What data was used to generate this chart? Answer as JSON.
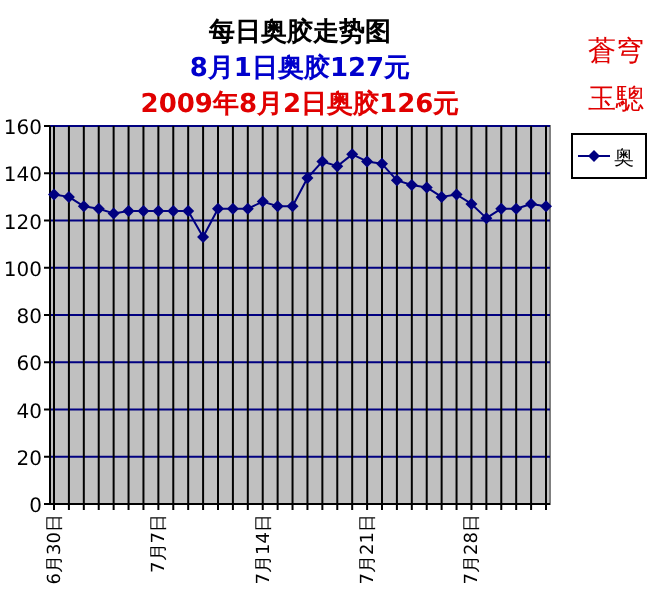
{
  "chart_data": {
    "type": "line",
    "title": "每日奥胶走势图",
    "subtitle": "8月1日奥胶127元",
    "annotations": [
      "2009年8月2日奥胶126元",
      "蒼穹",
      "玉驄"
    ],
    "x": [
      "--06-30",
      "--07-01",
      "--07-02",
      "--07-03",
      "--07-04",
      "--07-05",
      "--07-06",
      "--07-07",
      "--07-08",
      "--07-09",
      "--07-10",
      "--07-11",
      "--07-12",
      "--07-13",
      "--07-14",
      "--07-15",
      "--07-16",
      "--07-17",
      "--07-18",
      "--07-19",
      "--07-20",
      "--07-21",
      "--07-22",
      "--07-23",
      "--07-24",
      "--07-25",
      "--07-26",
      "--07-27",
      "--07-28",
      "--07-29",
      "--07-30",
      "--07-31",
      "--08-01",
      "--08-02"
    ],
    "series": [
      {
        "name": "奥",
        "color": "#000080",
        "values": [
          131,
          130,
          126,
          125,
          123,
          124,
          124,
          124,
          124,
          124,
          113,
          125,
          125,
          125,
          128,
          126,
          126,
          138,
          145,
          143,
          148,
          145,
          144,
          137,
          135,
          134,
          130,
          131,
          127,
          121,
          125,
          125,
          127,
          126
        ]
      }
    ],
    "xlim": [
      "--06-30",
      "--08-02"
    ],
    "xticks": [
      {
        "value": "--06-30",
        "label": "6月30日"
      },
      {
        "value": "--07-01",
        "label": null
      },
      {
        "value": "--07-02",
        "label": null
      },
      {
        "value": "--07-03",
        "label": null
      },
      {
        "value": "--07-04",
        "label": null
      },
      {
        "value": "--07-05",
        "label": null
      },
      {
        "value": "--07-06",
        "label": null
      },
      {
        "value": "--07-07",
        "label": "7月7日"
      },
      {
        "value": "--07-08",
        "label": null
      },
      {
        "value": "--07-09",
        "label": null
      },
      {
        "value": "--07-10",
        "label": null
      },
      {
        "value": "--07-11",
        "label": null
      },
      {
        "value": "--07-12",
        "label": null
      },
      {
        "value": "--07-13",
        "label": null
      },
      {
        "value": "--07-14",
        "label": "7月14日"
      },
      {
        "value": "--07-15",
        "label": null
      },
      {
        "value": "--07-16",
        "label": null
      },
      {
        "value": "--07-17",
        "label": null
      },
      {
        "value": "--07-18",
        "label": null
      },
      {
        "value": "--07-19",
        "label": null
      },
      {
        "value": "--07-20",
        "label": null
      },
      {
        "value": "--07-21",
        "label": "7月21日"
      },
      {
        "value": "--07-22",
        "label": null
      },
      {
        "value": "--07-23",
        "label": null
      },
      {
        "value": "--07-24",
        "label": null
      },
      {
        "value": "--07-25",
        "label": null
      },
      {
        "value": "--07-26",
        "label": null
      },
      {
        "value": "--07-27",
        "label": null
      },
      {
        "value": "--07-28",
        "label": "7月28日"
      },
      {
        "value": "--07-29",
        "label": null
      },
      {
        "value": "--07-30",
        "label": null
      },
      {
        "value": "--07-31",
        "label": null
      },
      {
        "value": "--08-01",
        "label": null
      },
      {
        "value": "--08-02",
        "label": null
      }
    ],
    "ylim": [
      0,
      160
    ],
    "yticks": [
      0,
      20,
      40,
      60,
      80,
      100,
      120,
      140,
      160
    ],
    "grid": true,
    "legend": "right",
    "marker": "diamond",
    "line_style": "solid"
  }
}
